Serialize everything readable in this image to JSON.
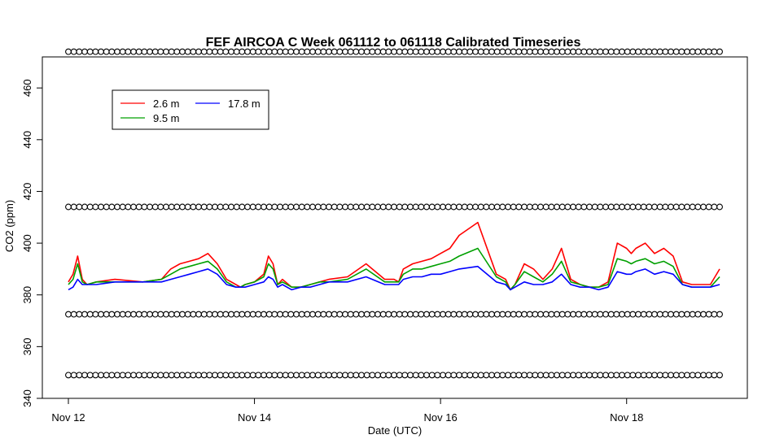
{
  "chart_data": {
    "type": "line",
    "title": "FEF AIRCOA C  Week 061112 to 061118  Calibrated Timeseries",
    "xlabel": "Date (UTC)",
    "ylabel": "CO2 (ppm)",
    "x_range_days": [
      0,
      7
    ],
    "ylim": [
      340,
      472
    ],
    "x_ticks": [
      {
        "day": 0,
        "label": "Nov 12"
      },
      {
        "day": 2,
        "label": "Nov 14"
      },
      {
        "day": 4,
        "label": "Nov 16"
      },
      {
        "day": 6,
        "label": "Nov 18"
      }
    ],
    "y_ticks": [
      340,
      360,
      380,
      400,
      420,
      440,
      460
    ],
    "grid": false,
    "legend_position": "top-left",
    "series": [
      {
        "name": "2.6 m",
        "color": "#ff0000",
        "x": [
          0,
          0.05,
          0.1,
          0.15,
          0.2,
          0.3,
          0.5,
          0.8,
          1.0,
          1.1,
          1.2,
          1.3,
          1.4,
          1.5,
          1.6,
          1.7,
          1.8,
          1.85,
          1.9,
          2.0,
          2.1,
          2.15,
          2.2,
          2.25,
          2.3,
          2.4,
          2.5,
          2.6,
          2.7,
          2.8,
          3.0,
          3.2,
          3.4,
          3.5,
          3.55,
          3.6,
          3.7,
          3.8,
          3.9,
          4.0,
          4.1,
          4.2,
          4.4,
          4.6,
          4.7,
          4.75,
          4.8,
          4.9,
          5.0,
          5.1,
          5.2,
          5.3,
          5.4,
          5.5,
          5.6,
          5.7,
          5.8,
          5.9,
          6.0,
          6.05,
          6.1,
          6.2,
          6.3,
          6.4,
          6.5,
          6.6,
          6.7,
          6.75,
          6.8,
          6.9,
          7.0
        ],
        "y": [
          385,
          388,
          395,
          386,
          384,
          385,
          386,
          385,
          386,
          390,
          392,
          393,
          394,
          396,
          392,
          386,
          384,
          383,
          384,
          385,
          388,
          395,
          392,
          384,
          386,
          383,
          383,
          384,
          385,
          386,
          387,
          392,
          386,
          386,
          385,
          390,
          392,
          393,
          394,
          396,
          398,
          403,
          408,
          388,
          386,
          382,
          384,
          392,
          390,
          386,
          390,
          398,
          386,
          384,
          383,
          383,
          385,
          400,
          398,
          396,
          398,
          400,
          396,
          398,
          395,
          385,
          384,
          384,
          384,
          384,
          390
        ]
      },
      {
        "name": "9.5 m",
        "color": "#00a000",
        "x": [
          0,
          0.05,
          0.1,
          0.15,
          0.2,
          0.3,
          0.5,
          0.8,
          1.0,
          1.1,
          1.2,
          1.3,
          1.4,
          1.5,
          1.6,
          1.7,
          1.8,
          1.85,
          1.9,
          2.0,
          2.1,
          2.15,
          2.2,
          2.25,
          2.3,
          2.4,
          2.5,
          2.6,
          2.7,
          2.8,
          3.0,
          3.2,
          3.4,
          3.5,
          3.55,
          3.6,
          3.7,
          3.8,
          3.9,
          4.0,
          4.1,
          4.2,
          4.4,
          4.6,
          4.7,
          4.75,
          4.8,
          4.9,
          5.0,
          5.1,
          5.2,
          5.3,
          5.4,
          5.5,
          5.6,
          5.7,
          5.8,
          5.9,
          6.0,
          6.05,
          6.1,
          6.2,
          6.3,
          6.4,
          6.5,
          6.6,
          6.7,
          6.75,
          6.8,
          6.9,
          7.0
        ],
        "y": [
          384,
          386,
          392,
          385,
          384,
          385,
          385,
          385,
          386,
          388,
          390,
          391,
          392,
          393,
          390,
          385,
          383,
          383,
          384,
          385,
          387,
          392,
          390,
          384,
          385,
          383,
          383,
          384,
          385,
          385,
          386,
          390,
          385,
          385,
          385,
          388,
          390,
          390,
          391,
          392,
          393,
          395,
          398,
          387,
          385,
          382,
          384,
          389,
          387,
          385,
          388,
          393,
          385,
          384,
          383,
          383,
          384,
          394,
          393,
          392,
          393,
          394,
          392,
          393,
          391,
          384,
          383,
          383,
          383,
          383,
          387
        ]
      },
      {
        "name": "17.8 m",
        "color": "#0000ff",
        "x": [
          0,
          0.05,
          0.1,
          0.15,
          0.2,
          0.3,
          0.5,
          0.8,
          1.0,
          1.1,
          1.2,
          1.3,
          1.4,
          1.5,
          1.6,
          1.7,
          1.8,
          1.85,
          1.9,
          2.0,
          2.1,
          2.15,
          2.2,
          2.25,
          2.3,
          2.4,
          2.5,
          2.6,
          2.7,
          2.8,
          3.0,
          3.2,
          3.4,
          3.5,
          3.55,
          3.6,
          3.7,
          3.8,
          3.9,
          4.0,
          4.1,
          4.2,
          4.4,
          4.6,
          4.7,
          4.75,
          4.8,
          4.9,
          5.0,
          5.1,
          5.2,
          5.3,
          5.4,
          5.5,
          5.6,
          5.7,
          5.8,
          5.9,
          6.0,
          6.05,
          6.1,
          6.2,
          6.3,
          6.4,
          6.5,
          6.6,
          6.7,
          6.75,
          6.8,
          6.9,
          7.0
        ],
        "y": [
          382,
          383,
          386,
          384,
          384,
          384,
          385,
          385,
          385,
          386,
          387,
          388,
          389,
          390,
          388,
          384,
          383,
          383,
          383,
          384,
          385,
          387,
          386,
          383,
          384,
          382,
          383,
          383,
          384,
          385,
          385,
          387,
          384,
          384,
          384,
          386,
          387,
          387,
          388,
          388,
          389,
          390,
          391,
          385,
          384,
          382,
          383,
          385,
          384,
          384,
          385,
          388,
          384,
          383,
          383,
          382,
          383,
          389,
          388,
          388,
          389,
          390,
          388,
          389,
          388,
          384,
          383,
          383,
          383,
          383,
          384
        ]
      }
    ],
    "reference_levels": [
      {
        "label": "marker row 1",
        "y": 474
      },
      {
        "label": "marker row 2",
        "y": 414
      },
      {
        "label": "marker row 3",
        "y": 372.5
      },
      {
        "label": "marker row 4",
        "y": 349
      }
    ],
    "marker_symbol": "o",
    "legend": {
      "entries": [
        {
          "name": "2.6 m",
          "color": "#ff0000"
        },
        {
          "name": "17.8 m",
          "color": "#0000ff"
        },
        {
          "name": "9.5 m",
          "color": "#00a000"
        }
      ]
    }
  }
}
